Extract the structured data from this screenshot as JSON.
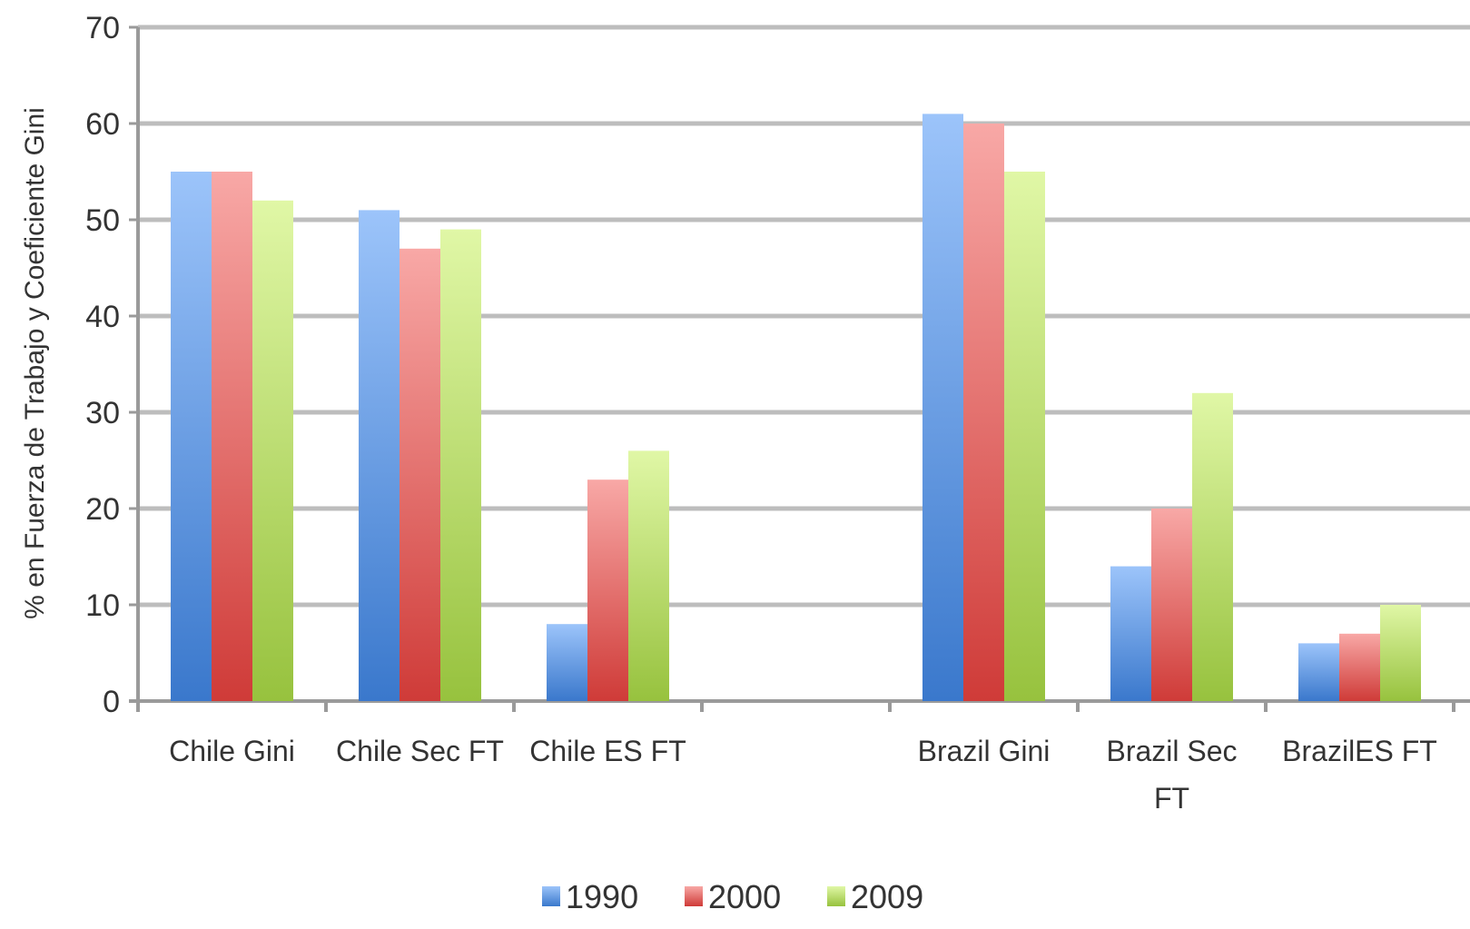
{
  "chart_data": {
    "type": "bar",
    "categories": [
      "Chile Gini",
      "Chile Sec FT",
      "Chile ES FT",
      "",
      "Brazil Gini",
      "Brazil Sec FT",
      "BrazilES FT"
    ],
    "category_lines": [
      [
        "Chile Gini"
      ],
      [
        "Chile Sec FT"
      ],
      [
        "Chile ES FT"
      ],
      [],
      [
        "Brazil Gini"
      ],
      [
        "Brazil Sec",
        "FT"
      ],
      [
        "BrazilES FT"
      ]
    ],
    "series": [
      {
        "name": "1990",
        "values": [
          55,
          51,
          8,
          null,
          61,
          14,
          6
        ]
      },
      {
        "name": "2000",
        "values": [
          55,
          47,
          23,
          null,
          60,
          20,
          7
        ]
      },
      {
        "name": "2009",
        "values": [
          52,
          49,
          26,
          null,
          55,
          32,
          10
        ]
      }
    ],
    "ylabel": "% en Fuerza de Trabajo y Coeficiente Gini",
    "xlabel": "",
    "ylim": [
      0,
      70
    ],
    "yticks": [
      0,
      10,
      20,
      30,
      40,
      50,
      60,
      70
    ],
    "grid": true,
    "legend_position": "bottom"
  },
  "colors": {
    "1990": {
      "top": "#9cc4fa",
      "bottom": "#3a78cc"
    },
    "2000": {
      "top": "#f8a8a6",
      "bottom": "#cf3b38"
    },
    "2009": {
      "top": "#e0f7a6",
      "bottom": "#97c23e"
    },
    "grid": "#bdbdbd",
    "axis": "#9a9a9a"
  }
}
